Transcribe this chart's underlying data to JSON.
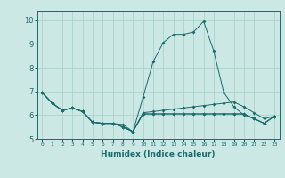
{
  "title": "",
  "xlabel": "Humidex (Indice chaleur)",
  "xlim": [
    -0.5,
    23.5
  ],
  "ylim": [
    5.0,
    10.4
  ],
  "yticks": [
    5,
    6,
    7,
    8,
    9,
    10
  ],
  "xticks": [
    0,
    1,
    2,
    3,
    4,
    5,
    6,
    7,
    8,
    9,
    10,
    11,
    12,
    13,
    14,
    15,
    16,
    17,
    18,
    19,
    20,
    21,
    22,
    23
  ],
  "bg_color": "#cce8e4",
  "grid_color": "#aad4cc",
  "line_color": "#1a6b6b",
  "line1": {
    "x": [
      0,
      1,
      2,
      3,
      4,
      5,
      6,
      7,
      8,
      9,
      10,
      11,
      12,
      13,
      14,
      15,
      16,
      17,
      18,
      19,
      20,
      21,
      22,
      23
    ],
    "y": [
      6.95,
      6.5,
      6.2,
      6.3,
      6.15,
      5.7,
      5.65,
      5.65,
      5.6,
      5.3,
      6.75,
      8.25,
      9.05,
      9.4,
      9.4,
      9.5,
      9.95,
      8.7,
      6.95,
      6.35,
      6.0,
      5.85,
      5.65,
      5.95
    ]
  },
  "line2": {
    "x": [
      0,
      1,
      2,
      3,
      4,
      5,
      6,
      7,
      8,
      9,
      10,
      11,
      12,
      13,
      14,
      15,
      16,
      17,
      18,
      19,
      20,
      21,
      22,
      23
    ],
    "y": [
      6.95,
      6.5,
      6.2,
      6.3,
      6.15,
      5.7,
      5.65,
      5.65,
      5.5,
      5.3,
      6.1,
      6.15,
      6.2,
      6.25,
      6.3,
      6.35,
      6.4,
      6.45,
      6.5,
      6.55,
      6.35,
      6.1,
      5.85,
      5.95
    ]
  },
  "line3": {
    "x": [
      0,
      1,
      2,
      3,
      4,
      5,
      6,
      7,
      8,
      9,
      10,
      11,
      12,
      13,
      14,
      15,
      16,
      17,
      18,
      19,
      20,
      21,
      22,
      23
    ],
    "y": [
      6.95,
      6.5,
      6.2,
      6.3,
      6.15,
      5.7,
      5.65,
      5.65,
      5.5,
      5.3,
      6.05,
      6.05,
      6.05,
      6.05,
      6.05,
      6.05,
      6.05,
      6.05,
      6.05,
      6.05,
      6.05,
      5.85,
      5.65,
      5.95
    ]
  },
  "line4": {
    "x": [
      0,
      1,
      2,
      3,
      4,
      5,
      6,
      7,
      8,
      9,
      10,
      11,
      12,
      13,
      14,
      15,
      16,
      17,
      18,
      19,
      20,
      21,
      22,
      23
    ],
    "y": [
      6.95,
      6.5,
      6.2,
      6.3,
      6.15,
      5.7,
      5.65,
      5.65,
      5.5,
      5.3,
      6.05,
      6.05,
      6.05,
      6.05,
      6.05,
      6.05,
      6.05,
      6.05,
      6.05,
      6.05,
      6.05,
      5.85,
      5.65,
      5.95
    ]
  }
}
